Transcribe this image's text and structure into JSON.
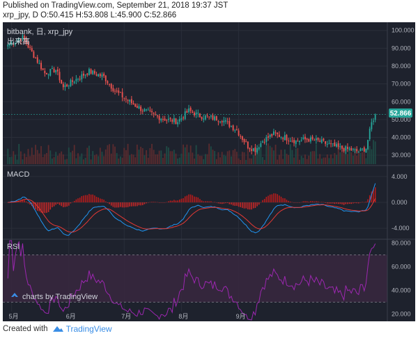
{
  "header": {
    "published": "Published on TradingView.com, September 21, 2018 19:37 JST",
    "ohlc": "xrp_jpy, D O:50.415 H:53.808 L:45.900 C:52.866"
  },
  "footer": {
    "created_with": "Created with",
    "brand": "TradingView"
  },
  "colors": {
    "background": "#1e222d",
    "up": "#26a69a",
    "down": "#ef5350",
    "macd_line": "#2196f3",
    "signal_line": "#e53935",
    "rsi_line": "#9c27b0",
    "rsi_band": "#3a2840",
    "last_price_badge": "#26a69a"
  },
  "chart_data": [
    {
      "type": "candlestick",
      "pane": "price",
      "title": "bitbank, 日, xrp_jpy",
      "volume_label": "出来高",
      "last_price": "52.866",
      "y_ticks": [
        30,
        40,
        50,
        60,
        70,
        80,
        90,
        100
      ],
      "y_tick_labels": [
        "30.000",
        "40.000",
        "50.000",
        "60.000",
        "70.000",
        "80.000",
        "90.000",
        "100.000"
      ],
      "ylim": [
        25,
        103
      ],
      "x_labels": [
        "5月",
        "6月",
        "7月",
        "8月",
        "9月"
      ],
      "keyframes": {
        "x": [
          0,
          8,
          14,
          20,
          26,
          30,
          36,
          44,
          52,
          58,
          66,
          72,
          80,
          86,
          92,
          98,
          104,
          110,
          116,
          124,
          130,
          134,
          138,
          144,
          150,
          156,
          162,
          168,
          174,
          180,
          186,
          190,
          194,
          197,
          199
        ],
        "close": [
          92,
          96,
          86,
          76,
          78,
          68,
          72,
          77,
          74,
          66,
          60,
          56,
          52,
          50,
          49,
          55,
          52,
          51,
          50,
          44,
          35,
          33,
          38,
          42,
          40,
          38,
          39,
          38,
          36,
          34,
          33,
          32,
          34,
          48,
          52.866
        ]
      },
      "days": 200,
      "tooltip": "charts by TradingView"
    },
    {
      "type": "histogram+line",
      "pane": "macd",
      "title": "MACD",
      "y_ticks": [
        -4,
        0,
        4
      ],
      "y_tick_labels": [
        "-4.000",
        "0.000",
        "4.000"
      ],
      "ylim": [
        -5.5,
        5.5
      ]
    },
    {
      "type": "line",
      "pane": "rsi",
      "title": "RSI",
      "y_ticks": [
        20,
        40,
        60,
        80
      ],
      "y_tick_labels": [
        "20.000",
        "40.000",
        "60.000",
        "80.000"
      ],
      "ylim": [
        15,
        82
      ],
      "band": [
        30,
        70
      ]
    }
  ]
}
